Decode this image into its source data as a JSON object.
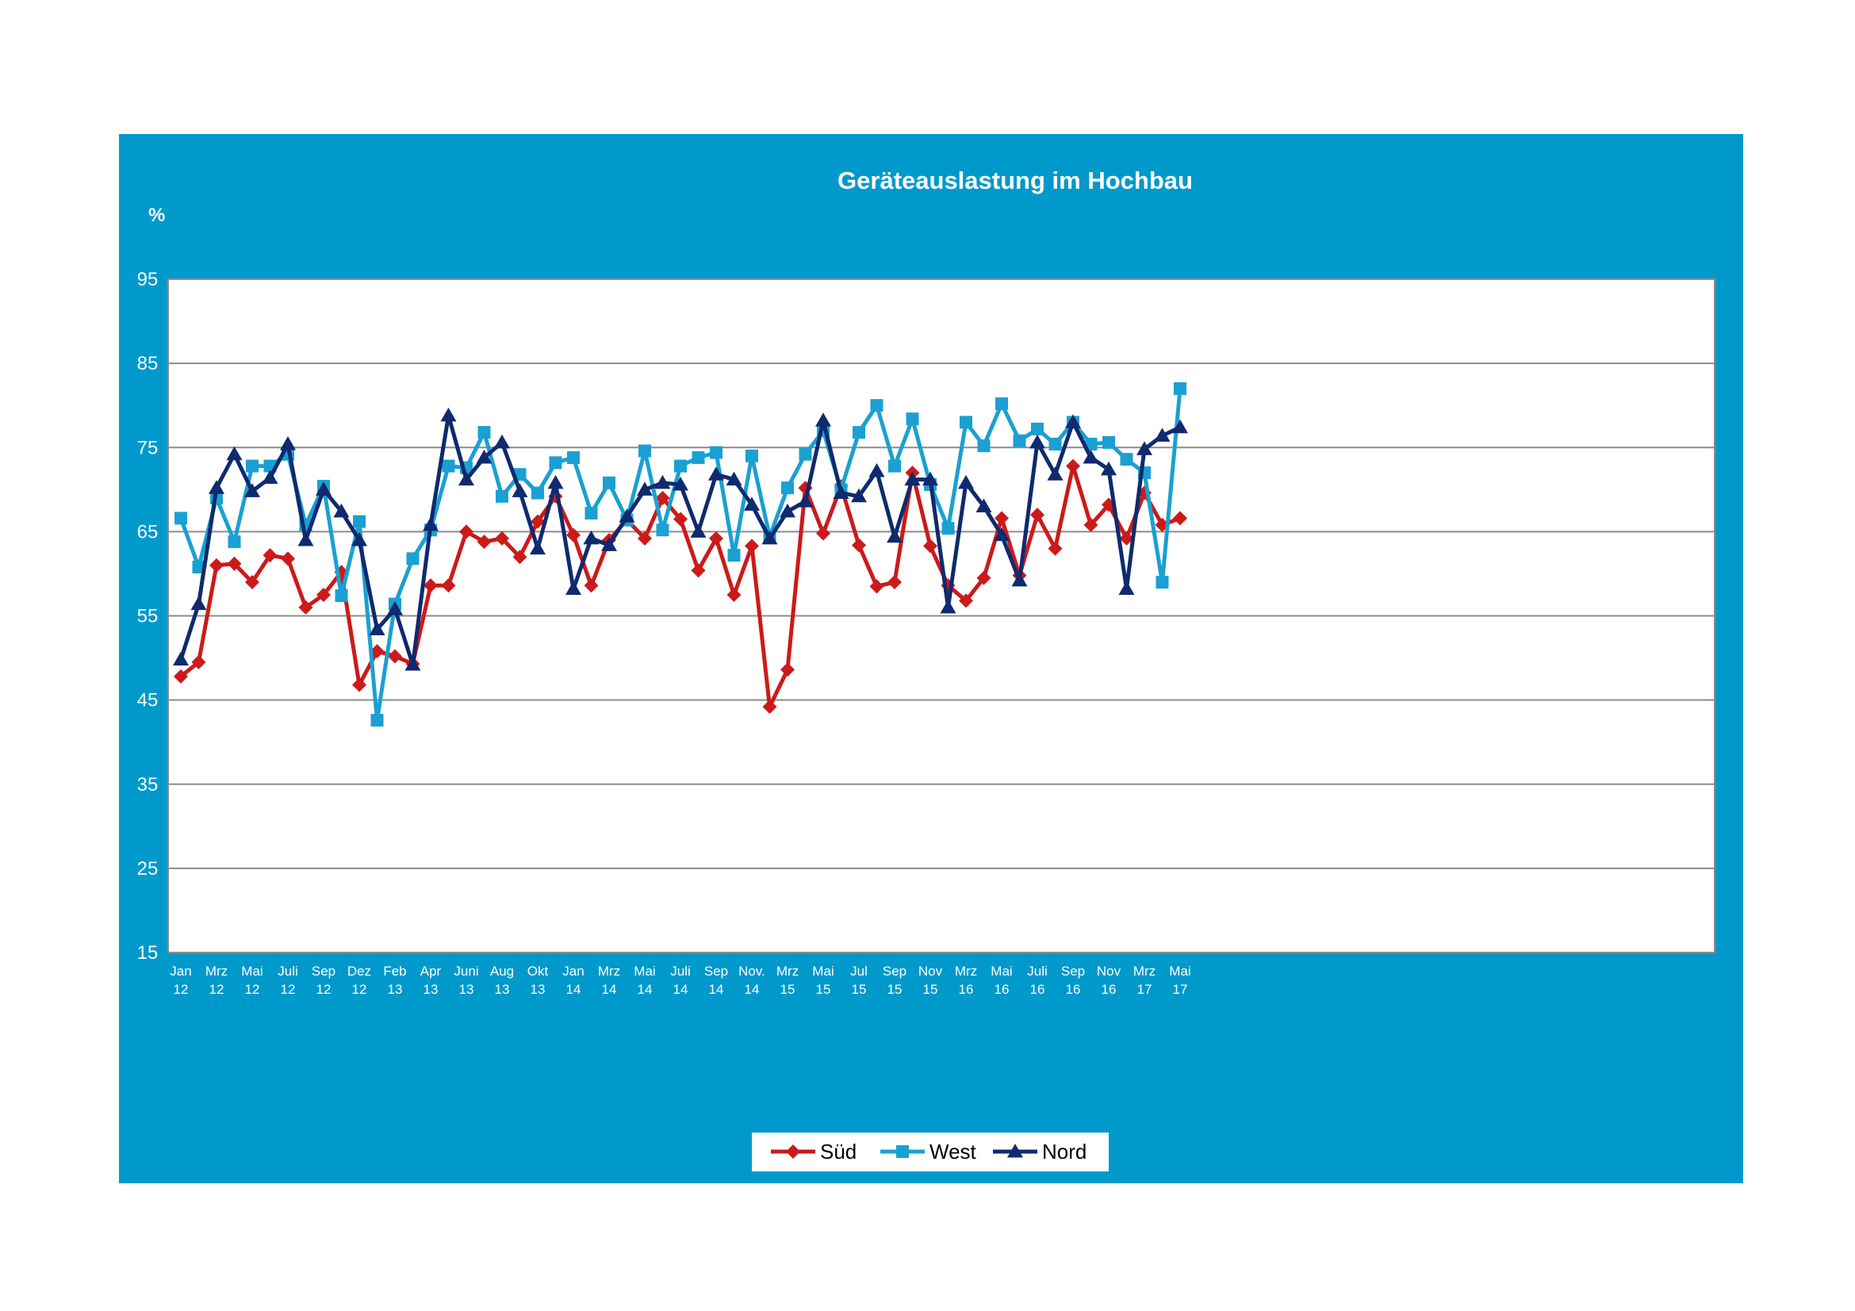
{
  "chart_data": {
    "type": "line",
    "title": "Geräteauslastung im Hochbau",
    "ylabel": "%",
    "xlabel": "",
    "ylim": [
      15,
      95
    ],
    "yticks": [
      15,
      25,
      35,
      45,
      55,
      65,
      75,
      85,
      95
    ],
    "grid": true,
    "legend_position": "bottom-center",
    "background_color": "#0099cc",
    "plot_background": "#ffffff",
    "x_tick_labels": [
      {
        "index": 0,
        "month": "Jan",
        "year": "12"
      },
      {
        "index": 2,
        "month": "Mrz",
        "year": "12"
      },
      {
        "index": 4,
        "month": "Mai",
        "year": "12"
      },
      {
        "index": 6,
        "month": "Juli",
        "year": "12"
      },
      {
        "index": 8,
        "month": "Sep",
        "year": "12"
      },
      {
        "index": 10,
        "month": "Dez",
        "year": "12"
      },
      {
        "index": 12,
        "month": "Feb",
        "year": "13"
      },
      {
        "index": 14,
        "month": "Apr",
        "year": "13"
      },
      {
        "index": 16,
        "month": "Juni",
        "year": "13"
      },
      {
        "index": 18,
        "month": "Aug",
        "year": "13"
      },
      {
        "index": 20,
        "month": "Okt",
        "year": "13"
      },
      {
        "index": 22,
        "month": "Jan",
        "year": "14"
      },
      {
        "index": 24,
        "month": "Mrz",
        "year": "14"
      },
      {
        "index": 26,
        "month": "Mai",
        "year": "14"
      },
      {
        "index": 28,
        "month": "Juli",
        "year": "14"
      },
      {
        "index": 30,
        "month": "Sep",
        "year": "14"
      },
      {
        "index": 32,
        "month": "Nov.",
        "year": "14"
      },
      {
        "index": 34,
        "month": "Mrz",
        "year": "15"
      },
      {
        "index": 36,
        "month": "Mai",
        "year": "15"
      },
      {
        "index": 38,
        "month": "Jul",
        "year": "15"
      },
      {
        "index": 40,
        "month": "Sep",
        "year": "15"
      },
      {
        "index": 42,
        "month": "Nov",
        "year": "15"
      },
      {
        "index": 44,
        "month": "Mrz",
        "year": "16"
      },
      {
        "index": 46,
        "month": "Mai",
        "year": "16"
      },
      {
        "index": 48,
        "month": "Juli",
        "year": "16"
      },
      {
        "index": 50,
        "month": "Sep",
        "year": "16"
      },
      {
        "index": 52,
        "month": "Nov",
        "year": "16"
      },
      {
        "index": 54,
        "month": "Mrz",
        "year": "17"
      },
      {
        "index": 56,
        "month": "Mai",
        "year": "17"
      }
    ],
    "series": [
      {
        "name": "Süd",
        "color": "#cc1a1a",
        "marker": "diamond",
        "values": [
          47.8,
          49.5,
          61,
          61.2,
          59,
          62.2,
          61.8,
          56,
          57.5,
          60.2,
          46.8,
          50.8,
          50.2,
          49.3,
          58.6,
          58.6,
          65,
          63.8,
          64.2,
          62,
          66.2,
          69.2,
          64.6,
          58.6,
          64,
          66.4,
          64.2,
          69,
          66.5,
          60.4,
          64.2,
          57.5,
          63.3,
          44.2,
          48.6,
          70.2,
          64.8,
          70.4,
          63.4,
          58.5,
          59,
          72,
          63.3,
          58.6,
          56.8,
          59.5,
          66.6,
          59.8,
          67,
          63,
          72.8,
          65.8,
          68.2,
          64.2,
          69.6,
          65.8,
          66.6
        ]
      },
      {
        "name": "West",
        "color": "#1aa0d2",
        "marker": "square",
        "values": [
          66.6,
          60.8,
          69,
          63.8,
          72.8,
          72.8,
          74.2,
          65.8,
          70.4,
          57.4,
          66.2,
          42.6,
          56.4,
          61.8,
          65.2,
          72.8,
          72.6,
          76.8,
          69.2,
          71.8,
          69.6,
          73.2,
          73.8,
          67.2,
          70.8,
          66.4,
          74.6,
          65.2,
          72.8,
          73.8,
          74.4,
          62.2,
          74,
          64.4,
          70.2,
          74.2,
          77,
          70,
          76.8,
          80,
          72.8,
          78.4,
          70.6,
          65.4,
          78,
          75.2,
          80.2,
          75.8,
          77.2,
          75.4,
          78,
          75.4,
          75.6,
          73.6,
          72,
          59,
          82
        ]
      },
      {
        "name": "Nord",
        "color": "#0f2a6e",
        "marker": "triangle",
        "values": [
          49.8,
          56.4,
          70.2,
          74.2,
          69.8,
          71.4,
          75.4,
          64,
          70,
          67.4,
          64,
          53.4,
          55.8,
          49.2,
          65.8,
          78.8,
          71.2,
          73.8,
          75.6,
          69.8,
          63,
          70.8,
          58.2,
          64.2,
          63.4,
          66.8,
          70,
          70.8,
          70.6,
          65,
          71.8,
          71.2,
          68.2,
          64.2,
          67.4,
          68.6,
          78.2,
          69.6,
          69.2,
          72.2,
          64.4,
          71.2,
          71.2,
          56,
          70.8,
          68,
          64.6,
          59.2,
          75.6,
          71.8,
          78,
          73.8,
          72.4,
          58.2,
          74.8,
          76.4,
          77.4
        ]
      }
    ]
  }
}
